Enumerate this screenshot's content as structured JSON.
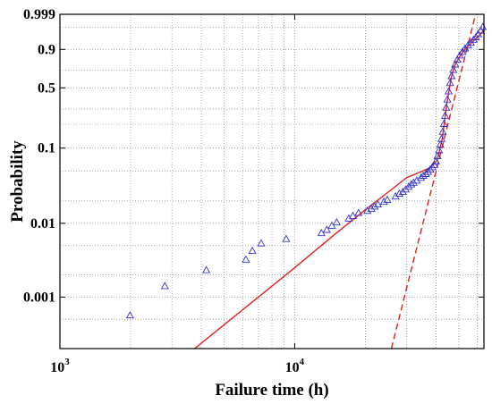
{
  "chart_data": {
    "type": "scatter",
    "title": "",
    "xlabel": "Failure time (h)",
    "ylabel": "Probability",
    "x_scale": "log",
    "y_scale": "weibull",
    "xlim": [
      1000,
      64000
    ],
    "ylim": [
      0.0002,
      0.999
    ],
    "grid": true,
    "legend": "none",
    "x_ticks": [
      {
        "value": 1000,
        "base": "10",
        "exp": "3"
      },
      {
        "value": 10000,
        "base": "10",
        "exp": "4"
      }
    ],
    "y_ticks": [
      {
        "value": 0.001,
        "label": "0.001"
      },
      {
        "value": 0.01,
        "label": "0.01"
      },
      {
        "value": 0.1,
        "label": "0.1"
      },
      {
        "value": 0.5,
        "label": "0.5"
      },
      {
        "value": 0.9,
        "label": "0.9"
      },
      {
        "value": 0.999,
        "label": "0.999"
      }
    ],
    "colors": {
      "markers": "#3333cc",
      "fit": "#e0201f",
      "grid": "#999999",
      "axes": "#000000"
    },
    "series": [
      {
        "marker": "triangle",
        "points": [
          [
            1990,
            0.00056
          ],
          [
            2800,
            0.0014
          ],
          [
            4200,
            0.0023
          ],
          [
            6200,
            0.0032
          ],
          [
            6600,
            0.0042
          ],
          [
            7200,
            0.0053
          ],
          [
            9200,
            0.0061
          ],
          [
            13000,
            0.0073
          ],
          [
            13700,
            0.0081
          ],
          [
            14400,
            0.0092
          ],
          [
            15100,
            0.0102
          ],
          [
            17000,
            0.0115
          ],
          [
            17700,
            0.0125
          ],
          [
            18700,
            0.0137
          ],
          [
            20400,
            0.0146
          ],
          [
            21200,
            0.0156
          ],
          [
            21900,
            0.0167
          ],
          [
            22600,
            0.0178
          ],
          [
            24000,
            0.0193
          ],
          [
            24800,
            0.0206
          ],
          [
            26900,
            0.0228
          ],
          [
            27900,
            0.0249
          ],
          [
            28900,
            0.0262
          ],
          [
            29700,
            0.0283
          ],
          [
            30600,
            0.0308
          ],
          [
            31400,
            0.0331
          ],
          [
            32100,
            0.0348
          ],
          [
            33100,
            0.0372
          ],
          [
            34500,
            0.0405
          ],
          [
            35300,
            0.0431
          ],
          [
            36200,
            0.0456
          ],
          [
            37000,
            0.0485
          ],
          [
            37800,
            0.052
          ],
          [
            38600,
            0.056
          ],
          [
            39300,
            0.06
          ],
          [
            40000,
            0.067
          ],
          [
            40600,
            0.078
          ],
          [
            41200,
            0.093
          ],
          [
            41700,
            0.11
          ],
          [
            42200,
            0.13
          ],
          [
            42700,
            0.16
          ],
          [
            43200,
            0.2
          ],
          [
            43700,
            0.25
          ],
          [
            44200,
            0.31
          ],
          [
            44700,
            0.38
          ],
          [
            45300,
            0.46
          ],
          [
            45900,
            0.55
          ],
          [
            46600,
            0.63
          ],
          [
            47400,
            0.7
          ],
          [
            48300,
            0.76
          ],
          [
            49300,
            0.81
          ],
          [
            50500,
            0.85
          ],
          [
            51800,
            0.88
          ],
          [
            53200,
            0.905
          ],
          [
            54700,
            0.925
          ],
          [
            56300,
            0.94
          ],
          [
            57800,
            0.955
          ],
          [
            59200,
            0.965
          ],
          [
            60500,
            0.975
          ],
          [
            62000,
            0.984
          ],
          [
            63300,
            0.99
          ]
        ]
      },
      {
        "marker": "none",
        "line": "solid",
        "points": [
          [
            3750,
            0.0002
          ],
          [
            5000,
            0.00042
          ],
          [
            7000,
            0.001
          ],
          [
            10000,
            0.0025
          ],
          [
            15000,
            0.0073
          ],
          [
            20000,
            0.0152
          ],
          [
            25000,
            0.0262
          ],
          [
            30000,
            0.041
          ],
          [
            35000,
            0.05
          ],
          [
            38000,
            0.056
          ],
          [
            40500,
            0.07
          ],
          [
            42500,
            0.13
          ],
          [
            44500,
            0.35
          ],
          [
            46500,
            0.62
          ],
          [
            48000,
            0.75
          ],
          [
            50000,
            0.83
          ],
          [
            53000,
            0.9
          ],
          [
            57000,
            0.945
          ],
          [
            60000,
            0.965
          ],
          [
            64000,
            0.985
          ]
        ]
      },
      {
        "marker": "none",
        "line": "dashed",
        "points": [
          [
            25800,
            0.0002
          ],
          [
            59000,
            0.999
          ]
        ]
      }
    ]
  }
}
